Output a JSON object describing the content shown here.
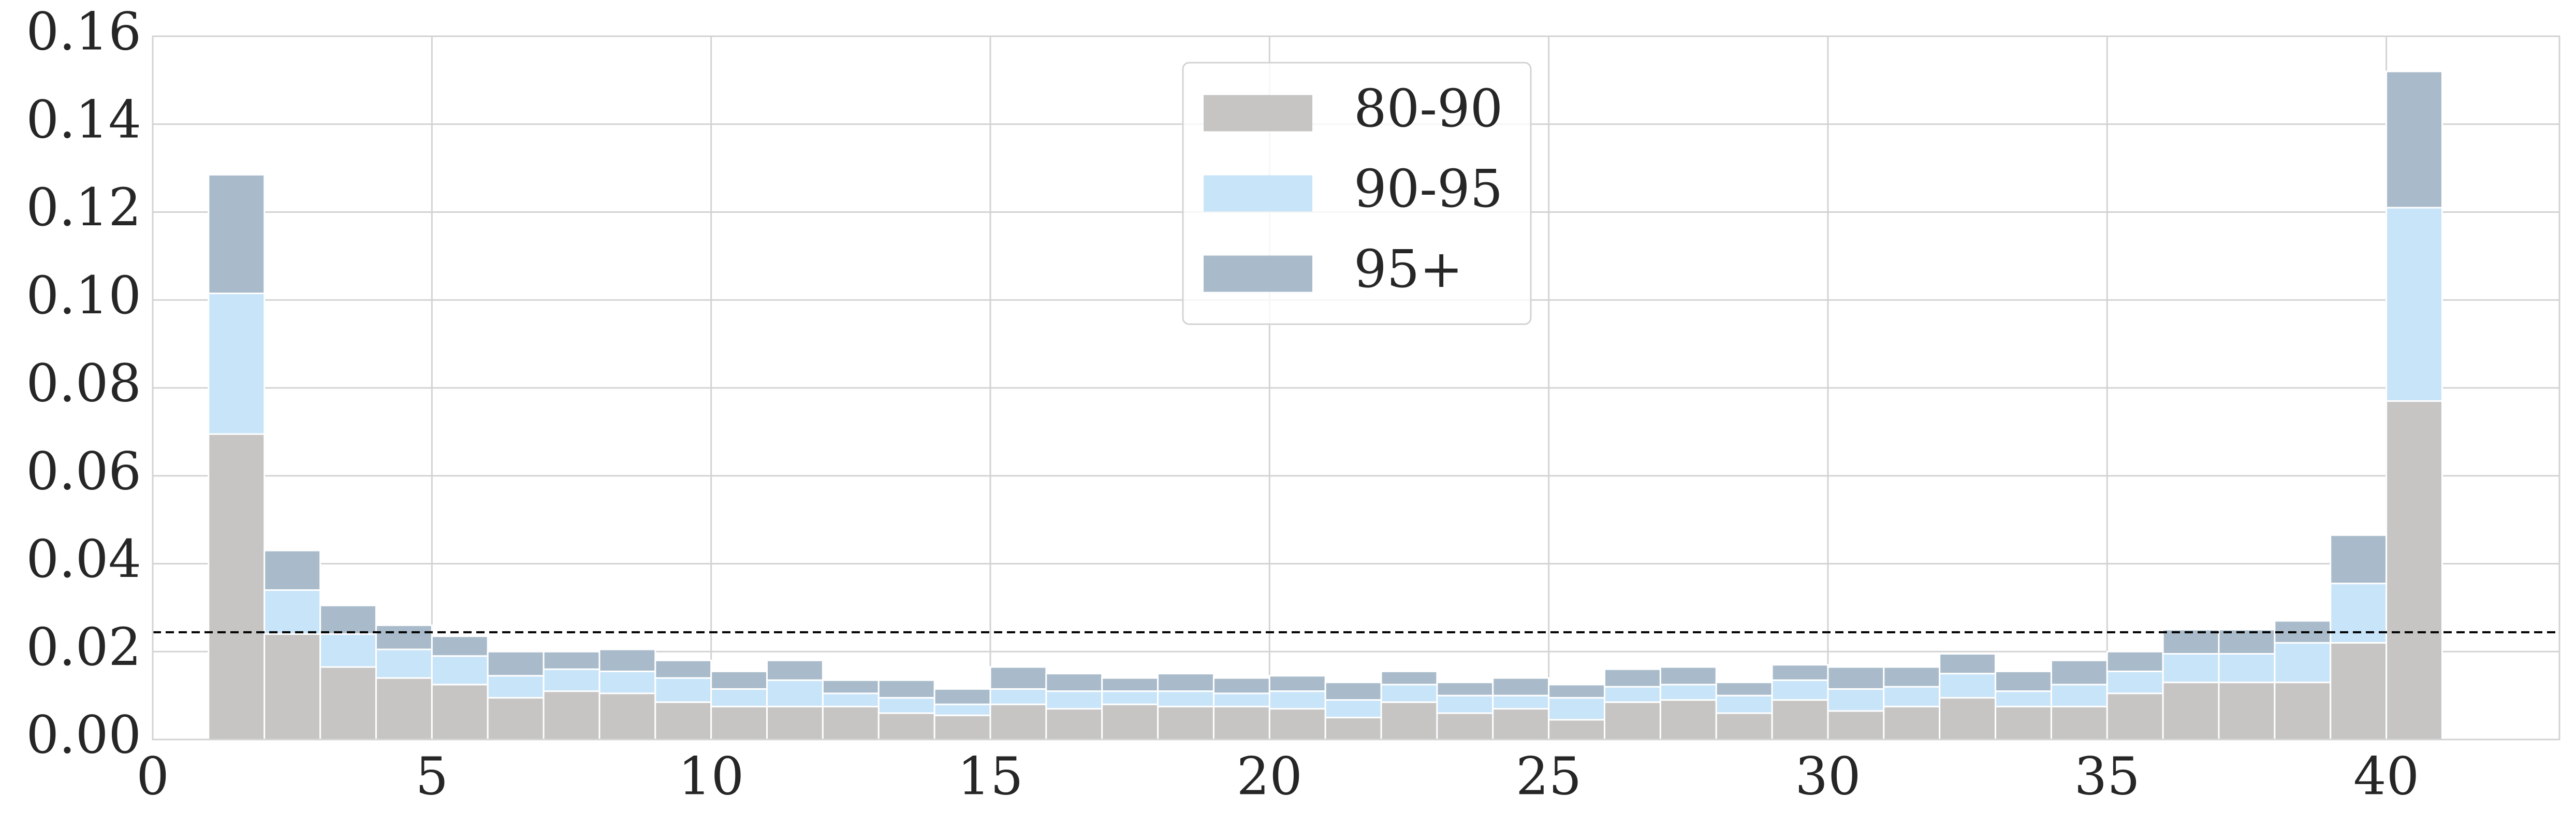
{
  "chart_data": {
    "type": "stacked_histogram",
    "bins": [
      1,
      2,
      3,
      4,
      5,
      6,
      7,
      8,
      9,
      10,
      11,
      12,
      13,
      14,
      15,
      16,
      17,
      18,
      19,
      20,
      21,
      22,
      23,
      24,
      25,
      26,
      27,
      28,
      29,
      30,
      31,
      32,
      33,
      34,
      35,
      36,
      37,
      38,
      39,
      40,
      41
    ],
    "series": [
      {
        "name": "80-90",
        "color": "#c6c5c4",
        "values": [
          0.0695,
          0.024,
          0.0165,
          0.014,
          0.0125,
          0.0095,
          0.011,
          0.0105,
          0.0085,
          0.0075,
          0.0075,
          0.0075,
          0.006,
          0.0055,
          0.008,
          0.007,
          0.008,
          0.0075,
          0.0075,
          0.007,
          0.005,
          0.0085,
          0.006,
          0.007,
          0.0045,
          0.0085,
          0.009,
          0.006,
          0.009,
          0.0065,
          0.0075,
          0.0095,
          0.0075,
          0.0075,
          0.0105,
          0.013,
          0.013,
          0.013,
          0.022,
          0.077
        ]
      },
      {
        "name": "90-95",
        "color": "#c8e4f9",
        "values": [
          0.032,
          0.01,
          0.0075,
          0.0065,
          0.0065,
          0.005,
          0.005,
          0.005,
          0.0055,
          0.004,
          0.006,
          0.003,
          0.0035,
          0.0025,
          0.0035,
          0.004,
          0.003,
          0.0035,
          0.003,
          0.004,
          0.004,
          0.004,
          0.004,
          0.003,
          0.005,
          0.0035,
          0.0035,
          0.004,
          0.0045,
          0.005,
          0.0045,
          0.0055,
          0.0035,
          0.005,
          0.005,
          0.0065,
          0.0065,
          0.009,
          0.0135,
          0.044
        ]
      },
      {
        "name": "95+",
        "color": "#a9bbca",
        "values": [
          0.027,
          0.009,
          0.0065,
          0.0055,
          0.0045,
          0.0055,
          0.004,
          0.005,
          0.004,
          0.004,
          0.0045,
          0.003,
          0.004,
          0.0035,
          0.005,
          0.004,
          0.003,
          0.004,
          0.0035,
          0.0035,
          0.004,
          0.003,
          0.003,
          0.004,
          0.003,
          0.004,
          0.004,
          0.003,
          0.0035,
          0.005,
          0.0045,
          0.0045,
          0.0045,
          0.0055,
          0.0045,
          0.0055,
          0.0055,
          0.005,
          0.011,
          0.031
        ]
      }
    ],
    "reference_line": 0.0244,
    "xlim": [
      0,
      43.1
    ],
    "xticks": [
      0,
      5,
      10,
      15,
      20,
      25,
      30,
      35,
      40
    ],
    "ylim": [
      0,
      0.16
    ],
    "yticks": [
      {
        "value": 0,
        "label": "0.00"
      },
      {
        "value": 0.02,
        "label": "0.02"
      },
      {
        "value": 0.04,
        "label": "0.04"
      },
      {
        "value": 0.06,
        "label": "0.06"
      },
      {
        "value": 0.08,
        "label": "0.08"
      },
      {
        "value": 0.1,
        "label": "0.10"
      },
      {
        "value": 0.12,
        "label": "0.12"
      },
      {
        "value": 0.14,
        "label": "0.14"
      },
      {
        "value": 0.16,
        "label": "0.16"
      }
    ],
    "grid": true,
    "legend": "upper center"
  }
}
